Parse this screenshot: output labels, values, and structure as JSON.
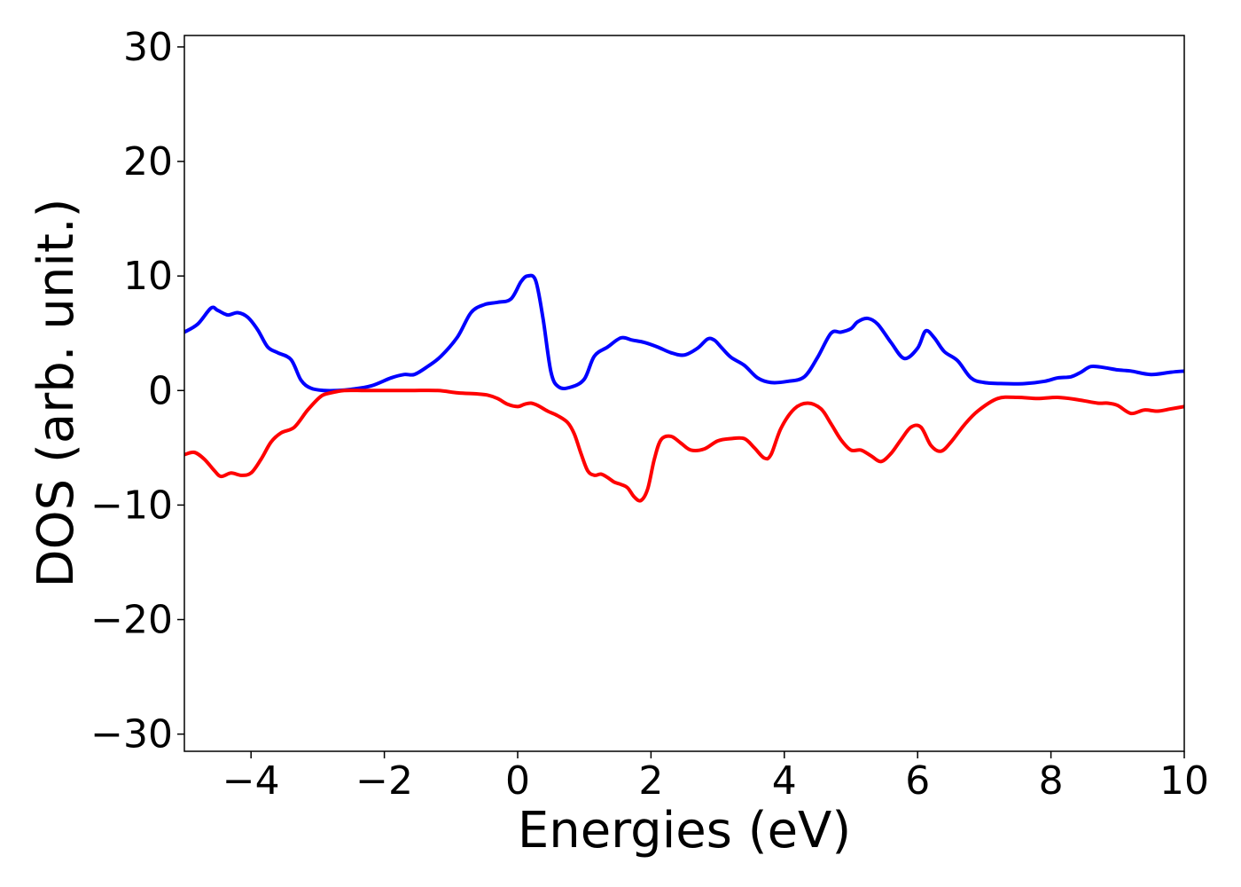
{
  "chart_data": {
    "type": "line",
    "title": "",
    "xlabel": "Energies (eV)",
    "ylabel": "DOS (arb. unit.)",
    "xlim": [
      -5,
      10
    ],
    "ylim": [
      -31.5,
      31
    ],
    "xticks": [
      -4,
      -2,
      0,
      2,
      4,
      6,
      8,
      10
    ],
    "xtick_labels": [
      "−4",
      "−2",
      "0",
      "2",
      "4",
      "6",
      "8",
      "10"
    ],
    "yticks": [
      30,
      20,
      10,
      0,
      -10,
      -20,
      -30
    ],
    "ytick_labels": [
      "30",
      "20",
      "10",
      "0",
      "−10",
      "−20",
      "−30"
    ],
    "grid": false,
    "legend": "none",
    "series": [
      {
        "color": "#0000ff",
        "x": [
          -5.0,
          -4.8,
          -4.6,
          -4.5,
          -4.35,
          -4.2,
          -4.05,
          -3.9,
          -3.75,
          -3.6,
          -3.4,
          -3.25,
          -3.1,
          -2.9,
          -2.7,
          -2.5,
          -2.2,
          -1.9,
          -1.7,
          -1.55,
          -1.35,
          -1.15,
          -0.9,
          -0.7,
          -0.5,
          -0.3,
          -0.1,
          0.05,
          0.15,
          0.27,
          0.38,
          0.5,
          0.62,
          0.8,
          1.0,
          1.15,
          1.35,
          1.55,
          1.72,
          1.9,
          2.1,
          2.3,
          2.5,
          2.7,
          2.85,
          2.95,
          3.05,
          3.2,
          3.4,
          3.6,
          3.8,
          4.05,
          4.3,
          4.5,
          4.7,
          4.85,
          5.0,
          5.1,
          5.25,
          5.4,
          5.6,
          5.8,
          6.0,
          6.12,
          6.25,
          6.4,
          6.6,
          6.8,
          7.0,
          7.3,
          7.6,
          7.9,
          8.1,
          8.3,
          8.45,
          8.6,
          8.8,
          9.0,
          9.2,
          9.5,
          9.8,
          10.0
        ],
        "y": [
          5.1,
          5.8,
          7.2,
          7.0,
          6.6,
          6.8,
          6.4,
          5.3,
          3.8,
          3.3,
          2.7,
          0.9,
          0.2,
          0.0,
          0.0,
          0.1,
          0.4,
          1.1,
          1.4,
          1.4,
          2.1,
          3.0,
          4.7,
          6.8,
          7.5,
          7.7,
          8.0,
          9.5,
          10.0,
          9.6,
          6.3,
          1.6,
          0.3,
          0.3,
          1.0,
          3.0,
          3.8,
          4.6,
          4.4,
          4.2,
          3.8,
          3.3,
          3.1,
          3.7,
          4.5,
          4.4,
          3.8,
          2.9,
          2.2,
          1.1,
          0.7,
          0.8,
          1.2,
          2.9,
          5.0,
          5.1,
          5.4,
          6.0,
          6.3,
          5.8,
          4.2,
          2.8,
          3.7,
          5.2,
          4.6,
          3.4,
          2.6,
          1.1,
          0.7,
          0.6,
          0.6,
          0.8,
          1.1,
          1.2,
          1.6,
          2.1,
          2.0,
          1.8,
          1.7,
          1.4,
          1.6,
          1.7
        ]
      },
      {
        "color": "#ff0000",
        "x": [
          -5.0,
          -4.85,
          -4.7,
          -4.55,
          -4.45,
          -4.3,
          -4.15,
          -4.0,
          -3.85,
          -3.7,
          -3.55,
          -3.35,
          -3.15,
          -2.95,
          -2.8,
          -2.6,
          -2.3,
          -2.0,
          -1.6,
          -1.2,
          -0.9,
          -0.6,
          -0.45,
          -0.3,
          -0.15,
          0.0,
          0.1,
          0.2,
          0.3,
          0.45,
          0.6,
          0.75,
          0.85,
          0.95,
          1.05,
          1.15,
          1.25,
          1.35,
          1.45,
          1.55,
          1.65,
          1.75,
          1.85,
          1.95,
          2.05,
          2.15,
          2.3,
          2.45,
          2.6,
          2.8,
          3.0,
          3.2,
          3.4,
          3.55,
          3.7,
          3.8,
          3.95,
          4.15,
          4.35,
          4.55,
          4.7,
          4.85,
          5.0,
          5.15,
          5.3,
          5.45,
          5.6,
          5.75,
          5.9,
          6.05,
          6.2,
          6.35,
          6.5,
          6.7,
          6.9,
          7.2,
          7.5,
          7.8,
          8.1,
          8.4,
          8.7,
          8.85,
          9.0,
          9.2,
          9.4,
          9.6,
          9.8,
          10.0
        ],
        "y": [
          -5.6,
          -5.4,
          -6.0,
          -7.0,
          -7.5,
          -7.2,
          -7.4,
          -7.2,
          -6.0,
          -4.5,
          -3.7,
          -3.2,
          -1.7,
          -0.5,
          -0.2,
          0.0,
          0.0,
          0.0,
          0.0,
          0.0,
          -0.2,
          -0.3,
          -0.4,
          -0.7,
          -1.2,
          -1.4,
          -1.2,
          -1.1,
          -1.3,
          -1.8,
          -2.2,
          -2.8,
          -3.8,
          -5.5,
          -7.0,
          -7.4,
          -7.3,
          -7.6,
          -8.0,
          -8.2,
          -8.5,
          -9.3,
          -9.6,
          -8.6,
          -6.0,
          -4.3,
          -4.0,
          -4.6,
          -5.2,
          -5.1,
          -4.4,
          -4.2,
          -4.2,
          -5.0,
          -5.9,
          -5.6,
          -3.3,
          -1.6,
          -1.1,
          -1.6,
          -2.9,
          -4.3,
          -5.2,
          -5.2,
          -5.7,
          -6.2,
          -5.5,
          -4.3,
          -3.2,
          -3.2,
          -4.8,
          -5.3,
          -4.5,
          -3.0,
          -1.8,
          -0.7,
          -0.6,
          -0.7,
          -0.6,
          -0.8,
          -1.1,
          -1.1,
          -1.3,
          -2.0,
          -1.7,
          -1.8,
          -1.6,
          -1.4
        ]
      }
    ]
  }
}
